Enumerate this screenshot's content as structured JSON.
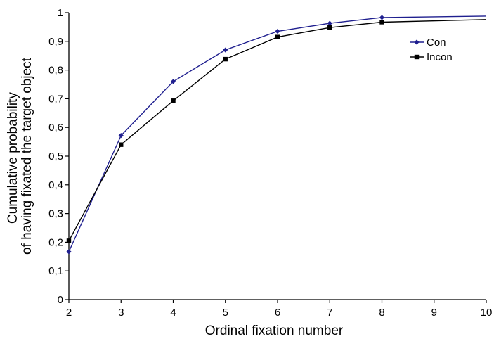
{
  "chart_data": {
    "type": "line",
    "x": [
      2,
      3,
      4,
      5,
      6,
      7,
      8,
      10
    ],
    "xlabel": "Ordinal fixation number",
    "ylabel_lines": [
      "Cumulative probability",
      "of having fixated the target object"
    ],
    "xlim": [
      2,
      10
    ],
    "ylim": [
      0,
      1
    ],
    "xticks": [
      "2",
      "3",
      "4",
      "5",
      "6",
      "7",
      "8",
      "9",
      "10"
    ],
    "yticks": [
      "0",
      "0,1",
      "0,2",
      "0,3",
      "0,4",
      "0,5",
      "0,6",
      "0,7",
      "0,8",
      "0,9",
      "1"
    ],
    "grid": false,
    "legend_position": "top-right",
    "series": [
      {
        "name": "Con",
        "color": "#1f1f8f",
        "marker": "diamond",
        "marker_x": [
          2,
          3,
          4,
          5,
          6,
          7,
          8
        ],
        "values": [
          0.167,
          0.572,
          0.76,
          0.87,
          0.935,
          0.963,
          0.983,
          0.988
        ]
      },
      {
        "name": "Incon",
        "color": "#000000",
        "marker": "square",
        "marker_x": [
          2,
          3,
          4,
          5,
          6,
          7,
          8
        ],
        "values": [
          0.205,
          0.54,
          0.693,
          0.838,
          0.915,
          0.948,
          0.967,
          0.976
        ]
      }
    ]
  }
}
